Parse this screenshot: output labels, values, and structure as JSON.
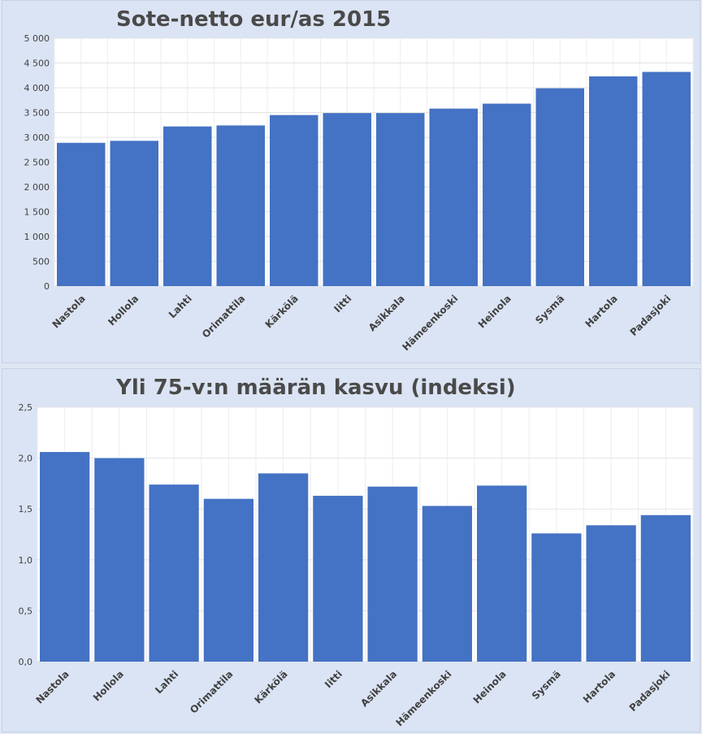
{
  "colors": {
    "bar": "#4472c4",
    "background": "#dbe4f4",
    "plot": "#ffffff",
    "grid": "#e3e3e3"
  },
  "chart_data": [
    {
      "type": "bar",
      "title": "Sote-netto eur/as 2015",
      "categories": [
        "Nastola",
        "Hollola",
        "Lahti",
        "Orimattila",
        "Kärkölä",
        "Iitti",
        "Asikkala",
        "Hämeenkoski",
        "Heinola",
        "Sysmä",
        "Hartola",
        "Padasjoki"
      ],
      "values": [
        2890,
        2930,
        3220,
        3240,
        3450,
        3490,
        3490,
        3580,
        3680,
        3990,
        4230,
        4320
      ],
      "ylim": [
        0,
        5000
      ],
      "yticks": [
        0,
        500,
        1000,
        1500,
        2000,
        2500,
        3000,
        3500,
        4000,
        4500,
        5000
      ],
      "ytick_labels": [
        "0",
        "500",
        "1 000",
        "1 500",
        "2 000",
        "2 500",
        "3 000",
        "3 500",
        "4 000",
        "4 500",
        "5 000"
      ],
      "xlabel": "",
      "ylabel": "",
      "grid": true,
      "legend": "none"
    },
    {
      "type": "bar",
      "title": "Yli 75-v:n määrän kasvu (indeksi)",
      "categories": [
        "Nastola",
        "Hollola",
        "Lahti",
        "Orimattila",
        "Kärkölä",
        "Iitti",
        "Asikkala",
        "Hämeenkoski",
        "Heinola",
        "Sysmä",
        "Hartola",
        "Padasjoki"
      ],
      "values": [
        2.06,
        2.0,
        1.74,
        1.6,
        1.85,
        1.63,
        1.72,
        1.53,
        1.73,
        1.26,
        1.34,
        1.44
      ],
      "ylim": [
        0,
        2.5
      ],
      "yticks": [
        0,
        0.5,
        1.0,
        1.5,
        2.0,
        2.5
      ],
      "ytick_labels": [
        "0,0",
        "0,5",
        "1,0",
        "1,5",
        "2,0",
        "2,5"
      ],
      "xlabel": "",
      "ylabel": "",
      "grid": true,
      "legend": "none"
    }
  ]
}
